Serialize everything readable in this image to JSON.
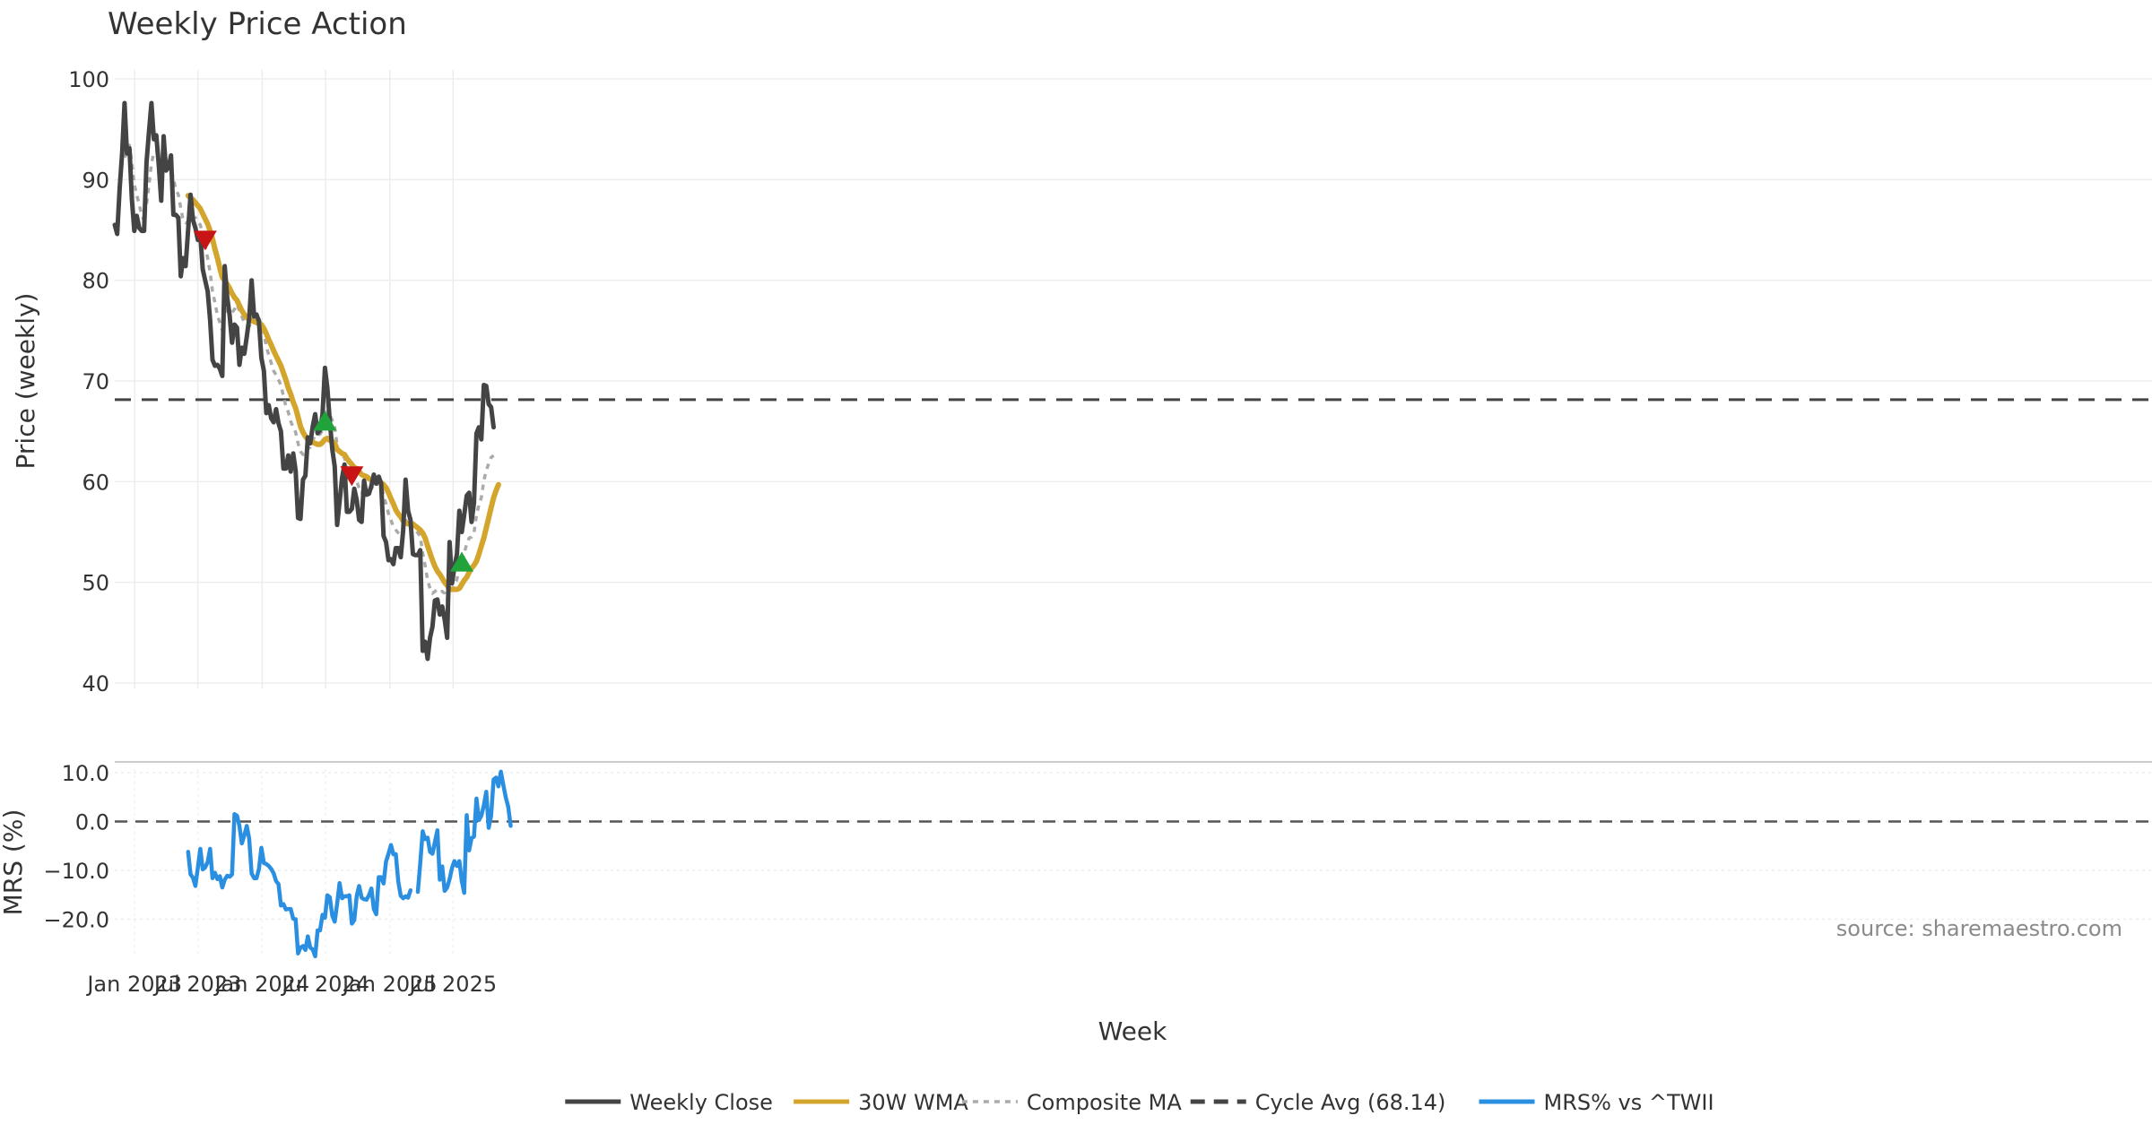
{
  "chart_data": {
    "type": "line",
    "title": "Weekly Price Action",
    "xlabel": "Week",
    "source": "source: sharemaestro.com",
    "x_ticks": [
      "Jan 2023",
      "Jul 2023",
      "Jan 2024",
      "Jul 2024",
      "Jan 2025",
      "Jul 2025"
    ],
    "x_start": "2022-11-05",
    "x_step_days": 7,
    "price_panel": {
      "ylabel": "Price (weekly)",
      "ylim": [
        40,
        100
      ],
      "y_ticks": [
        "40",
        "50",
        "60",
        "70",
        "80",
        "90",
        "100"
      ],
      "cycle_avg": 68.14
    },
    "mrs_panel": {
      "ylabel": "MRS (%)",
      "ylim": [
        -28,
        12
      ],
      "y_ticks": [
        "10.0",
        "0.0",
        "−10.0",
        "−20.0"
      ],
      "zero_line": 0
    },
    "legend": [
      {
        "label": "Weekly Close",
        "color": "#444444",
        "style": "solid"
      },
      {
        "label": "30W WMA",
        "color": "#D4A52C",
        "style": "solid"
      },
      {
        "label": "Composite MA",
        "color": "#AAAAAA",
        "style": "dotted"
      },
      {
        "label": "Cycle Avg (68.14)",
        "color": "#444444",
        "style": "dashed"
      },
      {
        "label": "MRS% vs ^TWII",
        "color": "#2A8FE0",
        "style": "solid"
      }
    ],
    "series": [
      {
        "name": "Weekly Close",
        "color": "#444444",
        "values": [
          85.5,
          84.6,
          89.2,
          92.6,
          97.6,
          92.6,
          93.1,
          88.0,
          84.9,
          86.4,
          85.2,
          84.9,
          84.9,
          91.7,
          94.8,
          97.6,
          94.0,
          94.4,
          91.4,
          87.9,
          94.3,
          90.9,
          91.2,
          92.4,
          86.5,
          86.5,
          86.2,
          80.4,
          82.2,
          81.4,
          85.0,
          88.5,
          86.0,
          85.2,
          84.0,
          84.5,
          81.1,
          80.0,
          78.9,
          76.1,
          72.1,
          71.5,
          71.6,
          71.2,
          70.5,
          81.4,
          78.3,
          76.5,
          73.8,
          75.6,
          75.3,
          71.6,
          73.3,
          72.7,
          74.4,
          76.2,
          80.0,
          76.4,
          76.6,
          75.9,
          72.3,
          71.0,
          66.8,
          67.6,
          66.3,
          65.9,
          67.2,
          65.8,
          65.0,
          61.3,
          61.3,
          62.6,
          61.0,
          62.8,
          61.1,
          56.4,
          56.3,
          60.2,
          60.6,
          64.4,
          63.8,
          65.5,
          66.7,
          64.8,
          65.1,
          66.7,
          71.3,
          69.3,
          66.0,
          63.2,
          61.5,
          55.7,
          58.0,
          60.4,
          61.7,
          57.0,
          57.0,
          57.3,
          59.3,
          58.2,
          56.2,
          56.0,
          60.1,
          58.7,
          58.8,
          59.6,
          60.7,
          59.8,
          60.5,
          59.8,
          54.6,
          54.0,
          52.2,
          52.3,
          51.8,
          53.4,
          53.4,
          52.5,
          55.1,
          60.2,
          57.1,
          56.2,
          52.8,
          52.7,
          52.7,
          53.2,
          43.2,
          44.1,
          42.4,
          44.5,
          45.6,
          48.2,
          48.3,
          46.8,
          47.6,
          46.3,
          44.5,
          54.0,
          49.9,
          51.5,
          52.8,
          57.1,
          55.0,
          56.7,
          58.6,
          58.9,
          56.0,
          57.9,
          64.8,
          65.4,
          64.2,
          69.6,
          69.5,
          67.7,
          67.4,
          65.4
        ]
      },
      {
        "name": "30W WMA",
        "color": "#D4A52C",
        "values": [
          null,
          null,
          null,
          null,
          null,
          null,
          null,
          null,
          null,
          null,
          null,
          null,
          null,
          null,
          null,
          null,
          null,
          null,
          null,
          null,
          null,
          null,
          null,
          null,
          null,
          null,
          null,
          null,
          null,
          null,
          88.4,
          88.2,
          88.0,
          87.7,
          87.4,
          87.1,
          86.6,
          86.1,
          85.6,
          84.9,
          84.1,
          83.1,
          82.2,
          81.2,
          80.3,
          80.0,
          79.6,
          79.2,
          78.7,
          78.3,
          78.0,
          77.5,
          77.0,
          76.6,
          76.3,
          76.1,
          76.0,
          75.9,
          75.8,
          75.7,
          75.6,
          75.2,
          74.7,
          74.1,
          73.6,
          73.0,
          72.5,
          72.0,
          71.5,
          70.8,
          70.1,
          69.3,
          68.7,
          67.9,
          67.3,
          66.4,
          65.5,
          64.9,
          64.5,
          64.2,
          64.0,
          63.9,
          63.8,
          63.7,
          63.7,
          63.9,
          64.2,
          64.3,
          64.1,
          64.0,
          63.8,
          63.2,
          63.0,
          62.8,
          62.7,
          62.3,
          62.0,
          61.7,
          61.4,
          61.3,
          61.0,
          60.7,
          60.6,
          60.5,
          60.3,
          60.2,
          60.1,
          60.0,
          60.0,
          59.9,
          59.7,
          59.4,
          58.9,
          58.3,
          57.8,
          57.2,
          56.8,
          56.5,
          56.1,
          55.9,
          55.8,
          55.8,
          55.8,
          55.6,
          55.4,
          55.2,
          54.9,
          54.4,
          53.6,
          52.9,
          52.2,
          51.6,
          51.1,
          50.8,
          50.4,
          50.0,
          49.7,
          49.3,
          49.3,
          49.3,
          49.3,
          49.4,
          49.8,
          50.2,
          50.5,
          51.0,
          51.4,
          51.7,
          52.1,
          52.8,
          53.6,
          54.4,
          55.4,
          56.4,
          57.4,
          58.4,
          59.1,
          59.7
        ]
      },
      {
        "name": "Composite MA",
        "color": "#AAAAAA",
        "values": [
          null,
          null,
          null,
          null,
          92.2,
          92.6,
          93.4,
          91.6,
          89.5,
          88.5,
          87.5,
          86.5,
          85.9,
          87.5,
          89.5,
          91.6,
          92.7,
          92.8,
          92.5,
          91.3,
          91.3,
          91.5,
          91.4,
          91.2,
          90.1,
          89.0,
          88.5,
          87.2,
          85.9,
          85.7,
          85.8,
          86.4,
          86.3,
          86.2,
          85.8,
          85.5,
          84.6,
          83.4,
          82.2,
          80.8,
          78.9,
          77.8,
          76.5,
          75.8,
          75.0,
          76.8,
          77.1,
          77.2,
          76.8,
          77.1,
          77.6,
          77.0,
          76.4,
          75.8,
          75.6,
          75.4,
          75.9,
          76.3,
          76.6,
          76.3,
          75.4,
          74.7,
          73.4,
          72.6,
          71.8,
          71.0,
          70.6,
          70.1,
          69.6,
          68.5,
          67.5,
          66.9,
          66.0,
          65.4,
          64.9,
          63.8,
          63.0,
          62.7,
          62.7,
          63.3,
          63.4,
          64.1,
          64.6,
          64.6,
          64.7,
          65.1,
          66.4,
          67.0,
          66.6,
          66.1,
          65.4,
          63.6,
          62.7,
          62.5,
          62.4,
          61.3,
          60.7,
          60.3,
          60.3,
          60.0,
          59.4,
          58.9,
          59.2,
          59.1,
          59.0,
          59.3,
          59.7,
          59.6,
          59.9,
          59.8,
          58.6,
          57.8,
          56.8,
          56.2,
          55.5,
          55.2,
          54.9,
          54.6,
          54.9,
          56.1,
          56.2,
          56.2,
          55.5,
          55.2,
          54.9,
          54.6,
          52.9,
          51.7,
          50.2,
          49.4,
          48.9,
          49.1,
          49.3,
          49.1,
          49.1,
          48.9,
          48.3,
          49.2,
          49.3,
          49.7,
          50.3,
          51.6,
          52.0,
          52.9,
          53.8,
          54.4,
          54.5,
          54.9,
          56.7,
          57.7,
          58.4,
          60.1,
          61.1,
          61.8,
          62.4,
          62.6
        ]
      },
      {
        "name": "MRS% vs ^TWII",
        "color": "#2A8FE0",
        "values": [
          null,
          null,
          null,
          null,
          null,
          null,
          null,
          null,
          null,
          null,
          null,
          null,
          null,
          null,
          null,
          null,
          null,
          null,
          null,
          null,
          null,
          null,
          null,
          null,
          null,
          null,
          null,
          null,
          null,
          null,
          -6.2,
          -10.8,
          -11.5,
          -13.2,
          -9.4,
          -5.6,
          -9.8,
          -9.4,
          -8.3,
          -5.6,
          -11.6,
          -10.5,
          -11.8,
          -11.2,
          -13.5,
          -11.9,
          -11.1,
          -11.3,
          -10.8,
          1.5,
          1.2,
          -0.9,
          -4.5,
          -2.8,
          -0.9,
          -3.5,
          -10.6,
          -11.6,
          -11.6,
          -9.7,
          -5.4,
          -8.5,
          -8.7,
          -9.1,
          -9.7,
          -10.6,
          -12.2,
          -12.8,
          -17.2,
          -16.9,
          -18.0,
          -17.9,
          -17.9,
          -19.9,
          -20.0,
          -27.0,
          -25.8,
          -25.5,
          -26.3,
          -23.5,
          -25.8,
          -26.2,
          -27.6,
          -22.3,
          -22.3,
          -19.1,
          -19.7,
          -15.1,
          -15.5,
          -19.3,
          -20.5,
          -16.8,
          -12.6,
          -15.7,
          -15.3,
          -15.3,
          -15.1,
          -20.9,
          -20.2,
          -15.3,
          -13.2,
          -15.6,
          -15.9,
          -16.0,
          -15.1,
          -13.7,
          -17.9,
          -19.0,
          -11.4,
          -11.4,
          -12.7,
          -8.2,
          -6.6,
          -4.8,
          -6.7,
          -6.7,
          -12.3,
          -15.2,
          -15.7,
          -15.3,
          -15.6,
          -14.1,
          null,
          null,
          -14.4,
          -8.5,
          -2.0,
          -3.6,
          -3.3,
          -6.2,
          -6.6,
          -4.2,
          -1.8,
          -11.9,
          -9.2,
          -14.2,
          -13.5,
          -11.8,
          -9.5,
          -8.1,
          -9.1,
          -8.1,
          -12.2,
          -14.6,
          1.3,
          -5.9,
          -3.4,
          -3.1,
          4.7,
          0.3,
          1.2,
          3.3,
          6.1,
          -1.3,
          1.2,
          8.6,
          9.0,
          7.2,
          10.2,
          7.4,
          4.9,
          3.0,
          -0.9
        ]
      }
    ],
    "markers": [
      {
        "type": "sell",
        "shape": "down-triangle",
        "color": "#C81414",
        "week_index": 37,
        "y": 84.0
      },
      {
        "type": "buy",
        "shape": "up-triangle",
        "color": "#1FA33A",
        "week_index": 86,
        "y": 66.0
      },
      {
        "type": "sell",
        "shape": "down-triangle",
        "color": "#C81414",
        "week_index": 97,
        "y": 60.6
      },
      {
        "type": "buy",
        "shape": "up-triangle",
        "color": "#1FA33A",
        "week_index": 142,
        "y": 52.0
      }
    ]
  }
}
